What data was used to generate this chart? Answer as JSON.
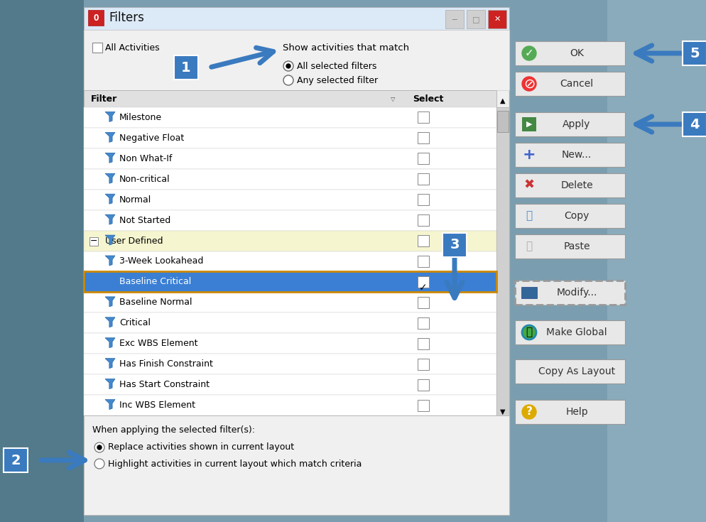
{
  "title": "Filters",
  "bg_outer_left": "#6a8fa0",
  "bg_outer_right": "#7a9aaa",
  "bg_center": "#c8d8e0",
  "dialog_bg": "#f0f0f0",
  "header_text": "Show activities that match",
  "radio1": "All selected filters",
  "radio2": "Any selected filter",
  "all_activities_label": "All Activities",
  "filter_col_label": "Filter",
  "select_col_label": "Select",
  "filter_items": [
    {
      "name": "Milestone",
      "indent": 1,
      "selected": false,
      "group": false
    },
    {
      "name": "Negative Float",
      "indent": 1,
      "selected": false,
      "group": false
    },
    {
      "name": "Non What-If",
      "indent": 1,
      "selected": false,
      "group": false
    },
    {
      "name": "Non-critical",
      "indent": 1,
      "selected": false,
      "group": false
    },
    {
      "name": "Normal",
      "indent": 1,
      "selected": false,
      "group": false
    },
    {
      "name": "Not Started",
      "indent": 1,
      "selected": false,
      "group": false
    },
    {
      "name": "User Defined",
      "indent": 0,
      "selected": false,
      "group": true
    },
    {
      "name": "3-Week Lookahead",
      "indent": 1,
      "selected": false,
      "group": false
    },
    {
      "name": "Baseline Critical",
      "indent": 1,
      "selected": true,
      "group": false
    },
    {
      "name": "Baseline Normal",
      "indent": 1,
      "selected": false,
      "group": false
    },
    {
      "name": "Critical",
      "indent": 1,
      "selected": false,
      "group": false
    },
    {
      "name": "Exc WBS Element",
      "indent": 1,
      "selected": false,
      "group": false
    },
    {
      "name": "Has Finish Constraint",
      "indent": 1,
      "selected": false,
      "group": false
    },
    {
      "name": "Has Start Constraint",
      "indent": 1,
      "selected": false,
      "group": false
    },
    {
      "name": "Inc WBS Element",
      "indent": 1,
      "selected": false,
      "group": false
    }
  ],
  "bottom_text": "When applying the selected filter(s):",
  "bottom_radio1": "Replace activities shown in current layout",
  "bottom_radio2": "Highlight activities in current layout which match criteria",
  "btn_labels": [
    "OK",
    "Cancel",
    "Apply",
    "New...",
    "Delete",
    "Copy",
    "Paste",
    "Modify...",
    "Make Global",
    "Copy As Layout",
    "Help"
  ],
  "arrow_color": "#3a7abf",
  "selected_row_color": "#3a7fd4",
  "group_row_color": "#f5f5d0",
  "header_row_color": "#e8e8e8",
  "funnel_color": "#4488cc",
  "funnel_edge": "#2266aa"
}
